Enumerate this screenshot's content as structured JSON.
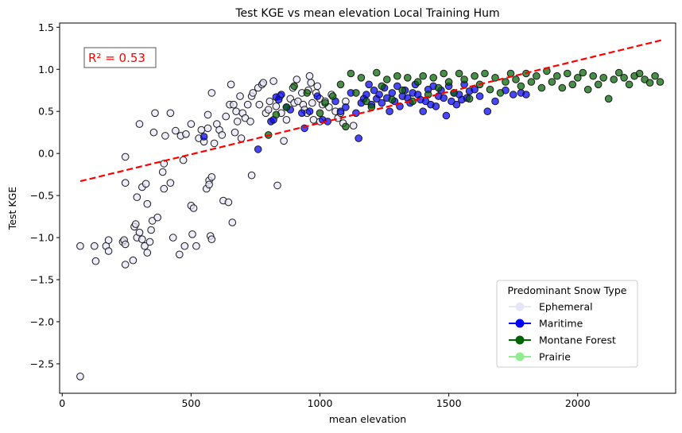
{
  "chart_data": {
    "type": "scatter",
    "title": "Test KGE vs mean elevation Local Training Hum",
    "xlabel": "mean elevation",
    "ylabel": "Test KGE",
    "xlim": [
      -10,
      2380
    ],
    "ylim": [
      -2.85,
      1.55
    ],
    "xticks": [
      0,
      500,
      1000,
      1500,
      2000
    ],
    "xtick_labels": [
      "0",
      "500",
      "1000",
      "1500",
      "2000"
    ],
    "yticks": [
      1.5,
      1.0,
      0.5,
      0.0,
      -0.5,
      -1.0,
      -1.5,
      -2.0,
      -2.5
    ],
    "ytick_labels": [
      "1.5",
      "1.0",
      "0.5",
      "0.0",
      "−0.5",
      "−1.0",
      "−1.5",
      "−2.0",
      "−2.5"
    ],
    "grid": false,
    "annotation": "R² = 0.53",
    "trendline": {
      "x": [
        70,
        2330
      ],
      "y": [
        -0.33,
        1.35
      ],
      "color": "#ff0000",
      "style": "dashed"
    },
    "legend": {
      "title": "Predominant Snow Type",
      "placement": "lower-right",
      "entries": [
        {
          "label": "Ephemeral",
          "color": "#e6e6fa"
        },
        {
          "label": "Maritime",
          "color": "#0000ff"
        },
        {
          "label": "Montane Forest",
          "color": "#006400"
        },
        {
          "label": "Prairie",
          "color": "#90ee90"
        }
      ]
    },
    "series": [
      {
        "name": "Ephemeral",
        "color": "#e6e6fa",
        "points": [
          [
            70,
            -2.65
          ],
          [
            70,
            -1.1
          ],
          [
            125,
            -1.1
          ],
          [
            130,
            -1.28
          ],
          [
            170,
            -1.1
          ],
          [
            180,
            -1.03
          ],
          [
            180,
            -1.16
          ],
          [
            235,
            -1.05
          ],
          [
            240,
            -1.03
          ],
          [
            245,
            -1.08
          ],
          [
            245,
            -1.32
          ],
          [
            245,
            -0.35
          ],
          [
            245,
            -0.04
          ],
          [
            275,
            -1.27
          ],
          [
            280,
            -0.87
          ],
          [
            285,
            -0.84
          ],
          [
            290,
            -1.0
          ],
          [
            290,
            -0.52
          ],
          [
            300,
            -0.94
          ],
          [
            310,
            -1.02
          ],
          [
            300,
            0.35
          ],
          [
            310,
            -0.4
          ],
          [
            320,
            -1.1
          ],
          [
            325,
            -0.36
          ],
          [
            330,
            -0.6
          ],
          [
            330,
            -1.18
          ],
          [
            340,
            -1.05
          ],
          [
            345,
            -0.91
          ],
          [
            350,
            -0.8
          ],
          [
            355,
            0.25
          ],
          [
            360,
            0.48
          ],
          [
            370,
            -0.76
          ],
          [
            390,
            -0.22
          ],
          [
            395,
            -0.12
          ],
          [
            395,
            -0.42
          ],
          [
            400,
            0.21
          ],
          [
            420,
            -0.35
          ],
          [
            420,
            0.48
          ],
          [
            430,
            -1.0
          ],
          [
            440,
            0.27
          ],
          [
            455,
            -1.2
          ],
          [
            460,
            0.21
          ],
          [
            470,
            -0.08
          ],
          [
            475,
            -1.1
          ],
          [
            480,
            0.23
          ],
          [
            500,
            0.35
          ],
          [
            500,
            -0.62
          ],
          [
            505,
            -0.96
          ],
          [
            510,
            -0.65
          ],
          [
            520,
            -1.1
          ],
          [
            530,
            0.18
          ],
          [
            540,
            0.28
          ],
          [
            550,
            0.14
          ],
          [
            560,
            -0.42
          ],
          [
            565,
            0.46
          ],
          [
            565,
            0.3
          ],
          [
            570,
            -0.32
          ],
          [
            570,
            -0.37
          ],
          [
            575,
            -0.98
          ],
          [
            580,
            -0.28
          ],
          [
            580,
            -1.02
          ],
          [
            580,
            0.72
          ],
          [
            590,
            0.12
          ],
          [
            600,
            0.35
          ],
          [
            610,
            0.28
          ],
          [
            620,
            0.22
          ],
          [
            625,
            -0.56
          ],
          [
            635,
            0.44
          ],
          [
            645,
            -0.58
          ],
          [
            650,
            0.58
          ],
          [
            655,
            0.82
          ],
          [
            660,
            -0.82
          ],
          [
            665,
            0.58
          ],
          [
            670,
            0.25
          ],
          [
            675,
            0.5
          ],
          [
            680,
            0.38
          ],
          [
            690,
            0.68
          ],
          [
            695,
            0.18
          ],
          [
            700,
            0.48
          ],
          [
            710,
            0.42
          ],
          [
            720,
            0.58
          ],
          [
            730,
            0.38
          ],
          [
            735,
            0.68
          ],
          [
            740,
            0.72
          ],
          [
            735,
            -0.26
          ],
          [
            760,
            0.78
          ],
          [
            765,
            0.58
          ],
          [
            775,
            0.82
          ],
          [
            780,
            0.84
          ],
          [
            790,
            0.48
          ],
          [
            800,
            0.52
          ],
          [
            805,
            0.62
          ],
          [
            820,
            0.86
          ],
          [
            830,
            0.56
          ],
          [
            835,
            -0.38
          ],
          [
            845,
            0.68
          ],
          [
            850,
            0.48
          ],
          [
            860,
            0.15
          ],
          [
            870,
            0.4
          ],
          [
            885,
            0.65
          ],
          [
            895,
            0.78
          ],
          [
            900,
            0.6
          ],
          [
            910,
            0.88
          ],
          [
            915,
            0.62
          ],
          [
            930,
            0.72
          ],
          [
            935,
            0.58
          ],
          [
            940,
            0.52
          ],
          [
            950,
            0.48
          ],
          [
            955,
            0.75
          ],
          [
            960,
            0.92
          ],
          [
            965,
            0.84
          ],
          [
            970,
            0.6
          ],
          [
            975,
            0.4
          ],
          [
            985,
            0.72
          ],
          [
            990,
            0.8
          ],
          [
            1000,
            0.38
          ],
          [
            1000,
            0.65
          ],
          [
            1010,
            0.58
          ],
          [
            1020,
            0.62
          ],
          [
            1035,
            0.55
          ],
          [
            1045,
            0.7
          ],
          [
            1060,
            0.5
          ],
          [
            1070,
            0.42
          ],
          [
            1080,
            0.48
          ],
          [
            1090,
            0.36
          ],
          [
            1100,
            0.62
          ],
          [
            1130,
            0.33
          ]
        ]
      },
      {
        "name": "Maritime",
        "color": "#0000ff",
        "points": [
          [
            550,
            0.2
          ],
          [
            760,
            0.05
          ],
          [
            810,
            0.38
          ],
          [
            820,
            0.4
          ],
          [
            830,
            0.67
          ],
          [
            840,
            0.64
          ],
          [
            850,
            0.7
          ],
          [
            870,
            0.55
          ],
          [
            885,
            0.52
          ],
          [
            930,
            0.48
          ],
          [
            940,
            0.3
          ],
          [
            960,
            0.5
          ],
          [
            990,
            0.68
          ],
          [
            1010,
            0.4
          ],
          [
            1030,
            0.38
          ],
          [
            1060,
            0.62
          ],
          [
            1080,
            0.5
          ],
          [
            1100,
            0.55
          ],
          [
            1120,
            0.72
          ],
          [
            1140,
            0.48
          ],
          [
            1150,
            0.18
          ],
          [
            1160,
            0.6
          ],
          [
            1170,
            0.65
          ],
          [
            1180,
            0.7
          ],
          [
            1190,
            0.82
          ],
          [
            1200,
            0.58
          ],
          [
            1210,
            0.75
          ],
          [
            1220,
            0.65
          ],
          [
            1230,
            0.7
          ],
          [
            1240,
            0.6
          ],
          [
            1250,
            0.78
          ],
          [
            1260,
            0.66
          ],
          [
            1270,
            0.5
          ],
          [
            1280,
            0.72
          ],
          [
            1290,
            0.62
          ],
          [
            1300,
            0.8
          ],
          [
            1310,
            0.56
          ],
          [
            1320,
            0.68
          ],
          [
            1330,
            0.75
          ],
          [
            1340,
            0.66
          ],
          [
            1350,
            0.6
          ],
          [
            1360,
            0.72
          ],
          [
            1370,
            0.82
          ],
          [
            1380,
            0.7
          ],
          [
            1390,
            0.64
          ],
          [
            1400,
            0.5
          ],
          [
            1410,
            0.62
          ],
          [
            1420,
            0.76
          ],
          [
            1430,
            0.58
          ],
          [
            1440,
            0.8
          ],
          [
            1450,
            0.56
          ],
          [
            1460,
            0.68
          ],
          [
            1470,
            0.75
          ],
          [
            1480,
            0.66
          ],
          [
            1490,
            0.45
          ],
          [
            1500,
            0.8
          ],
          [
            1510,
            0.62
          ],
          [
            1520,
            0.72
          ],
          [
            1530,
            0.58
          ],
          [
            1540,
            0.7
          ],
          [
            1550,
            0.64
          ],
          [
            1560,
            0.82
          ],
          [
            1570,
            0.66
          ],
          [
            1580,
            0.74
          ],
          [
            1600,
            0.76
          ],
          [
            1620,
            0.68
          ],
          [
            1650,
            0.5
          ],
          [
            1680,
            0.62
          ],
          [
            1720,
            0.75
          ],
          [
            1750,
            0.7
          ],
          [
            1780,
            0.72
          ],
          [
            1800,
            0.7
          ]
        ]
      },
      {
        "name": "Montane Forest",
        "color": "#006400",
        "points": [
          [
            800,
            0.22
          ],
          [
            830,
            0.46
          ],
          [
            870,
            0.55
          ],
          [
            900,
            0.8
          ],
          [
            950,
            0.72
          ],
          [
            1000,
            0.48
          ],
          [
            1020,
            0.6
          ],
          [
            1050,
            0.68
          ],
          [
            1080,
            0.82
          ],
          [
            1100,
            0.32
          ],
          [
            1120,
            0.95
          ],
          [
            1140,
            0.72
          ],
          [
            1160,
            0.9
          ],
          [
            1180,
            0.62
          ],
          [
            1200,
            0.55
          ],
          [
            1220,
            0.96
          ],
          [
            1240,
            0.8
          ],
          [
            1260,
            0.88
          ],
          [
            1280,
            0.64
          ],
          [
            1300,
            0.92
          ],
          [
            1320,
            0.75
          ],
          [
            1340,
            0.9
          ],
          [
            1360,
            0.62
          ],
          [
            1380,
            0.85
          ],
          [
            1400,
            0.92
          ],
          [
            1420,
            0.7
          ],
          [
            1440,
            0.9
          ],
          [
            1460,
            0.78
          ],
          [
            1480,
            0.95
          ],
          [
            1500,
            0.85
          ],
          [
            1520,
            0.72
          ],
          [
            1540,
            0.95
          ],
          [
            1560,
            0.88
          ],
          [
            1580,
            0.65
          ],
          [
            1600,
            0.92
          ],
          [
            1620,
            0.82
          ],
          [
            1640,
            0.95
          ],
          [
            1660,
            0.76
          ],
          [
            1680,
            0.9
          ],
          [
            1700,
            0.72
          ],
          [
            1720,
            0.85
          ],
          [
            1740,
            0.95
          ],
          [
            1760,
            0.88
          ],
          [
            1780,
            0.8
          ],
          [
            1800,
            0.95
          ],
          [
            1820,
            0.85
          ],
          [
            1840,
            0.92
          ],
          [
            1860,
            0.78
          ],
          [
            1880,
            0.98
          ],
          [
            1900,
            0.85
          ],
          [
            1920,
            0.92
          ],
          [
            1940,
            0.78
          ],
          [
            1960,
            0.95
          ],
          [
            1980,
            0.82
          ],
          [
            2000,
            0.9
          ],
          [
            2020,
            0.96
          ],
          [
            2040,
            0.76
          ],
          [
            2060,
            0.92
          ],
          [
            2080,
            0.82
          ],
          [
            2100,
            0.9
          ],
          [
            2120,
            0.65
          ],
          [
            2140,
            0.88
          ],
          [
            2160,
            0.96
          ],
          [
            2180,
            0.9
          ],
          [
            2200,
            0.82
          ],
          [
            2220,
            0.92
          ],
          [
            2240,
            0.95
          ],
          [
            2260,
            0.88
          ],
          [
            2280,
            0.84
          ],
          [
            2300,
            0.92
          ],
          [
            2320,
            0.85
          ]
        ]
      },
      {
        "name": "Prairie",
        "color": "#90ee90",
        "points": []
      }
    ]
  }
}
